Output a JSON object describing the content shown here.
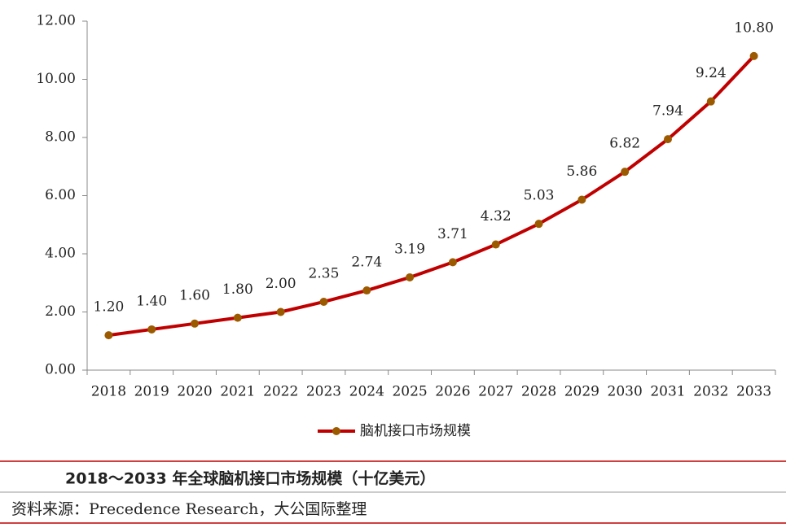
{
  "chart_data": {
    "type": "line",
    "caption": "2018～2033 年全球脑机接口市场规模（十亿美元）",
    "source": "资料来源：Precedence Research，大公国际整理",
    "categories": [
      "2018",
      "2019",
      "2020",
      "2021",
      "2022",
      "2023",
      "2024",
      "2025",
      "2026",
      "2027",
      "2028",
      "2029",
      "2030",
      "2031",
      "2032",
      "2033"
    ],
    "series": [
      {
        "name": "脑机接口市场规模",
        "color": "#c00000",
        "marker_color": "#9c5a00",
        "values": [
          1.2,
          1.4,
          1.6,
          1.8,
          2.0,
          2.35,
          2.74,
          3.19,
          3.71,
          4.32,
          5.03,
          5.86,
          6.82,
          7.94,
          9.24,
          10.8
        ],
        "value_labels": [
          "1.20",
          "1.40",
          "1.60",
          "1.80",
          "2.00",
          "2.35",
          "2.74",
          "3.19",
          "3.71",
          "4.32",
          "5.03",
          "5.86",
          "6.82",
          "7.94",
          "9.24",
          "10.80"
        ]
      }
    ],
    "ylim": [
      0,
      12
    ],
    "yticks": [
      {
        "value": 0,
        "label": "0.00"
      },
      {
        "value": 2,
        "label": "2.00"
      },
      {
        "value": 4,
        "label": "4.00"
      },
      {
        "value": 6,
        "label": "6.00"
      },
      {
        "value": 8,
        "label": "8.00"
      },
      {
        "value": 10,
        "label": "10.00"
      },
      {
        "value": 12,
        "label": "12.00"
      }
    ],
    "grid": false,
    "legend": "bottom"
  }
}
